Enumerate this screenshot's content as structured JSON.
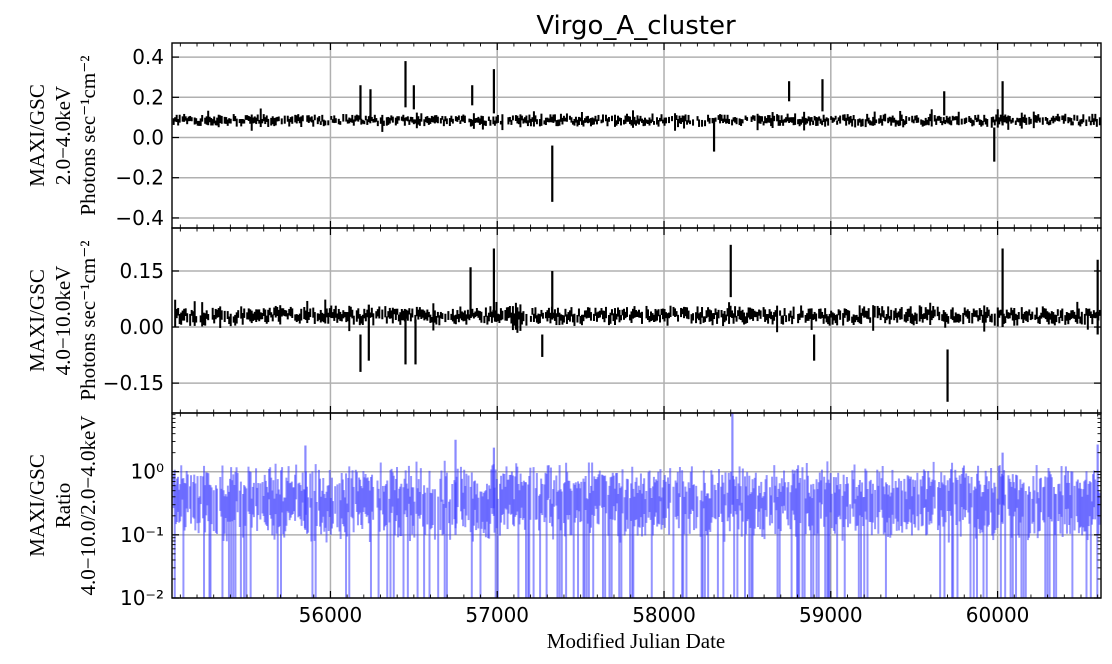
{
  "chart_data": [
    {
      "type": "scatter",
      "panel": "top",
      "title": "Virgo_A_cluster",
      "ylabel_lines": [
        "MAXI/GSC",
        "2.0−4.0keV",
        "Photons sec⁻¹cm⁻²"
      ],
      "xlim": [
        55050,
        60620
      ],
      "ylim": [
        -0.45,
        0.47
      ],
      "yticks": [
        0.4,
        0.2,
        0.0,
        -0.2,
        -0.4
      ],
      "ytick_labels": [
        "0.4",
        "0.2",
        "0.0",
        "−0.2",
        "−0.4"
      ],
      "grid": true,
      "color": "#000000",
      "baseline": 0.085,
      "typical_error": 0.025,
      "outliers": [
        {
          "x": 56180,
          "low": 0.09,
          "high": 0.26
        },
        {
          "x": 56240,
          "low": 0.09,
          "high": 0.24
        },
        {
          "x": 56450,
          "low": 0.15,
          "high": 0.38
        },
        {
          "x": 56500,
          "low": 0.14,
          "high": 0.26
        },
        {
          "x": 56850,
          "low": 0.16,
          "high": 0.26
        },
        {
          "x": 56980,
          "low": 0.12,
          "high": 0.34
        },
        {
          "x": 57330,
          "low": -0.32,
          "high": -0.04
        },
        {
          "x": 58300,
          "low": -0.07,
          "high": 0.08
        },
        {
          "x": 58750,
          "low": 0.18,
          "high": 0.28
        },
        {
          "x": 58950,
          "low": 0.13,
          "high": 0.29
        },
        {
          "x": 59680,
          "low": 0.11,
          "high": 0.23
        },
        {
          "x": 59980,
          "low": -0.12,
          "high": 0.05
        },
        {
          "x": 60030,
          "low": 0.06,
          "high": 0.28
        }
      ]
    },
    {
      "type": "scatter",
      "panel": "middle",
      "ylabel_lines": [
        "MAXI/GSC",
        "4.0−10.0keV",
        "Photons sec⁻¹cm⁻²"
      ],
      "xlim": [
        55050,
        60620
      ],
      "ylim": [
        -0.23,
        0.265
      ],
      "yticks": [
        0.15,
        0.0,
        -0.15
      ],
      "ytick_labels": [
        "0.15",
        "0.00",
        "−0.15"
      ],
      "grid": true,
      "color": "#000000",
      "baseline": 0.03,
      "typical_error": 0.02,
      "outliers": [
        {
          "x": 56180,
          "low": -0.12,
          "high": -0.02
        },
        {
          "x": 56230,
          "low": -0.09,
          "high": 0.06
        },
        {
          "x": 56450,
          "low": -0.1,
          "high": 0.04
        },
        {
          "x": 56510,
          "low": -0.1,
          "high": 0.02
        },
        {
          "x": 56840,
          "low": 0.03,
          "high": 0.16
        },
        {
          "x": 56980,
          "low": 0.03,
          "high": 0.21
        },
        {
          "x": 57330,
          "low": 0.02,
          "high": 0.15
        },
        {
          "x": 57270,
          "low": -0.08,
          "high": -0.02
        },
        {
          "x": 58400,
          "low": 0.08,
          "high": 0.22
        },
        {
          "x": 58900,
          "low": -0.09,
          "high": -0.02
        },
        {
          "x": 59700,
          "low": -0.2,
          "high": -0.06
        },
        {
          "x": 60030,
          "low": 0.0,
          "high": 0.21
        },
        {
          "x": 60600,
          "low": -0.02,
          "high": 0.18
        }
      ]
    },
    {
      "type": "scatter",
      "panel": "bottom",
      "ylabel_lines": [
        "MAXI/GSC",
        "Ratio",
        "4.0−10.0/2.0−4.0keV"
      ],
      "xlabel": "Modified Julian Date",
      "xlim": [
        55050,
        60620
      ],
      "ylim_log": [
        0.01,
        8.5
      ],
      "yscale": "log",
      "ytick_labels": [
        "10⁰",
        "10⁻¹",
        "10⁻²"
      ],
      "yticks": [
        1,
        0.1,
        0.01
      ],
      "xticks": [
        56000,
        57000,
        58000,
        59000,
        60000
      ],
      "xtick_labels": [
        "56000",
        "57000",
        "58000",
        "59000",
        "60000"
      ],
      "grid": true,
      "color": "#3c3cff",
      "baseline": 0.35,
      "outliers": [
        {
          "x": 55850,
          "low": 0.12,
          "high": 2.6
        },
        {
          "x": 56750,
          "low": 0.1,
          "high": 3.2
        },
        {
          "x": 56980,
          "low": 0.2,
          "high": 2.4
        },
        {
          "x": 58410,
          "low": 0.3,
          "high": 8.5
        },
        {
          "x": 60030,
          "low": 0.15,
          "high": 2.0
        },
        {
          "x": 60600,
          "low": 0.2,
          "high": 2.7
        }
      ]
    }
  ]
}
